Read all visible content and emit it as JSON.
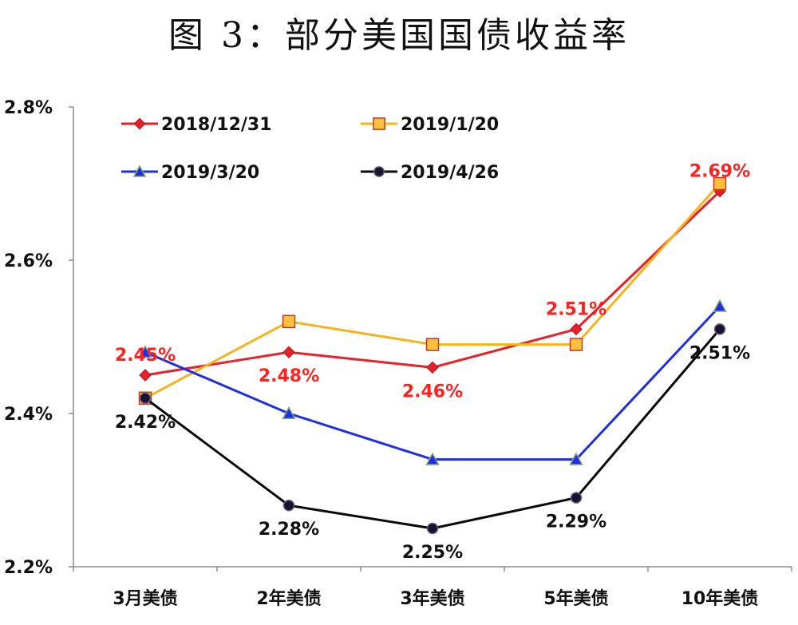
{
  "chart_data": {
    "type": "line",
    "title": "图 3：部分美国国债收益率",
    "xlabel": "",
    "ylabel": "",
    "categories": [
      "3月美债",
      "2年美债",
      "3年美债",
      "5年美债",
      "10年美债"
    ],
    "ylim": [
      2.2,
      2.8
    ],
    "yticks": [
      {
        "value": 2.2,
        "label": "2.2%"
      },
      {
        "value": 2.4,
        "label": "2.4%"
      },
      {
        "value": 2.6,
        "label": "2.6%"
      },
      {
        "value": 2.8,
        "label": "2.8%"
      }
    ],
    "grid": false,
    "legend_position": "top",
    "series": [
      {
        "name": "2018/12/31",
        "color": "#e8202a",
        "marker": "diamond",
        "marker_fill": "#e8202a",
        "marker_stroke": "#b0101a",
        "values": [
          2.45,
          2.48,
          2.46,
          2.51,
          2.69
        ]
      },
      {
        "name": "2019/1/20",
        "color": "#f5b41e",
        "marker": "square",
        "marker_fill": "#ffc13b",
        "marker_stroke": "#c0392b",
        "values": [
          2.42,
          2.52,
          2.49,
          2.49,
          2.7
        ]
      },
      {
        "name": "2019/3/20",
        "color": "#1e2ee0",
        "marker": "triangle",
        "marker_fill": "#1e2ee0",
        "marker_stroke": "#8aa870",
        "values": [
          2.48,
          2.4,
          2.34,
          2.34,
          2.54
        ]
      },
      {
        "name": "2019/4/26",
        "color": "#0a0a0a",
        "marker": "circle",
        "marker_fill": "#1b1133",
        "marker_stroke": "#666677",
        "values": [
          2.42,
          2.28,
          2.25,
          2.29,
          2.51
        ]
      }
    ],
    "data_labels": [
      {
        "series": 0,
        "index": 0,
        "text": "2.45%",
        "color": "#ff2020",
        "placement": "above"
      },
      {
        "series": 0,
        "index": 1,
        "text": "2.48%",
        "color": "#ff2020",
        "placement": "below"
      },
      {
        "series": 0,
        "index": 2,
        "text": "2.46%",
        "color": "#ff2020",
        "placement": "below"
      },
      {
        "series": 0,
        "index": 3,
        "text": "2.51%",
        "color": "#ff2020",
        "placement": "above"
      },
      {
        "series": 0,
        "index": 4,
        "text": "2.69%",
        "color": "#ff2020",
        "placement": "above"
      },
      {
        "series": 3,
        "index": 0,
        "text": "2.42%",
        "color": "#111111",
        "placement": "below"
      },
      {
        "series": 3,
        "index": 1,
        "text": "2.28%",
        "color": "#111111",
        "placement": "below"
      },
      {
        "series": 3,
        "index": 2,
        "text": "2.25%",
        "color": "#111111",
        "placement": "below"
      },
      {
        "series": 3,
        "index": 3,
        "text": "2.29%",
        "color": "#111111",
        "placement": "below"
      },
      {
        "series": 3,
        "index": 4,
        "text": "2.51%",
        "color": "#111111",
        "placement": "below"
      }
    ]
  }
}
